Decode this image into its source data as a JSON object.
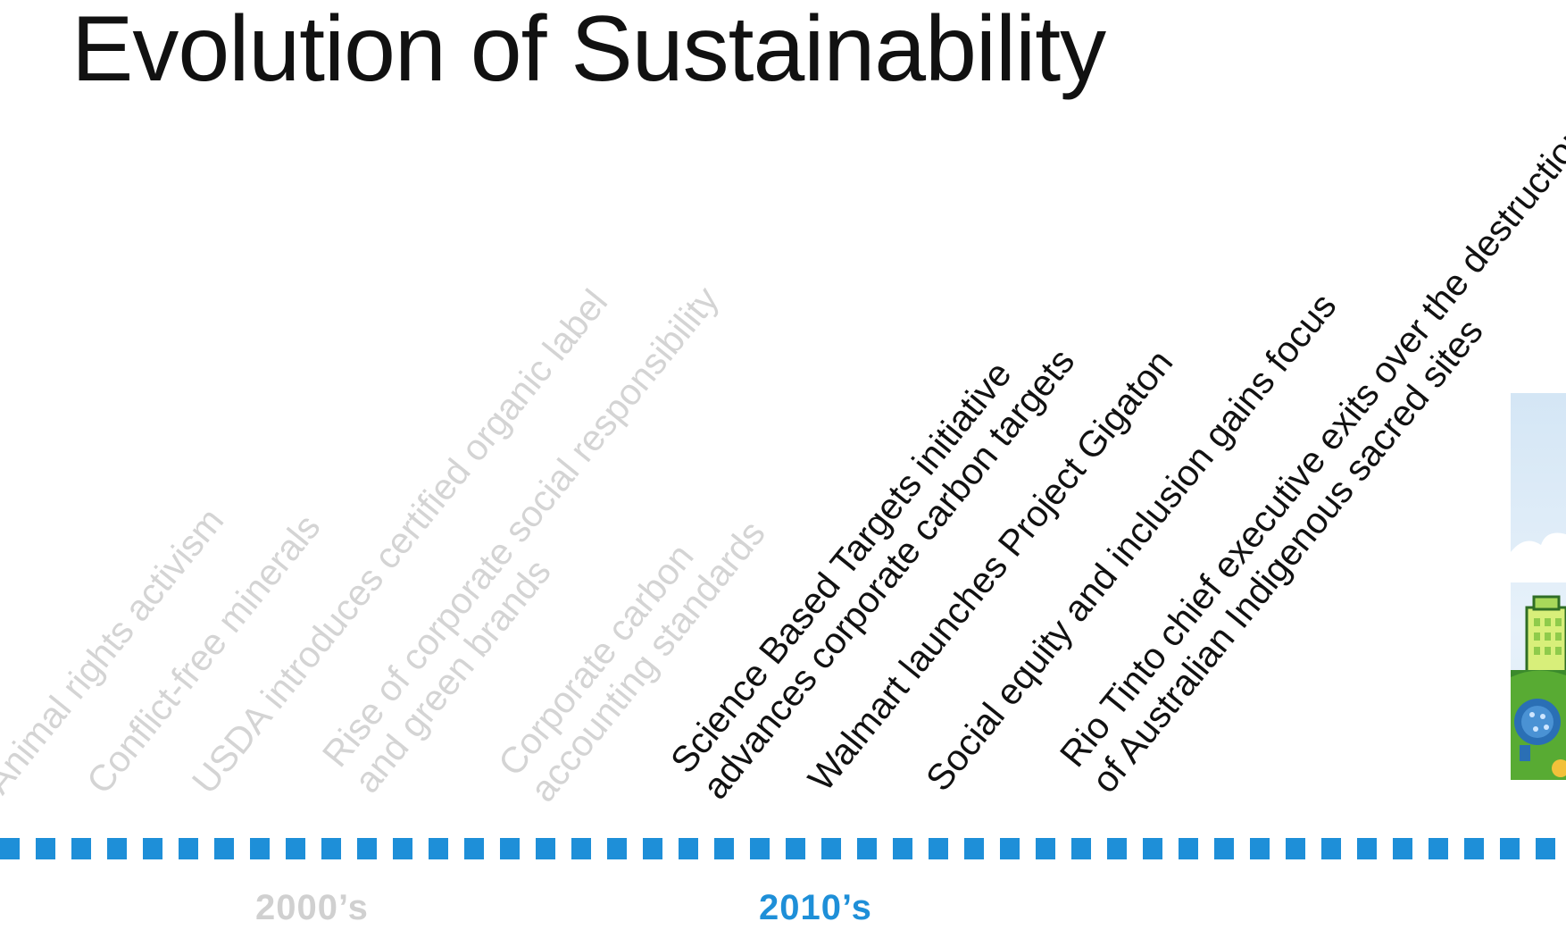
{
  "title": "Evolution of Sustainability",
  "colors": {
    "accent": "#1e8fd8",
    "past_text": "#d4d4d4",
    "current_text": "#111111"
  },
  "events_past": [
    {
      "lines": [
        "Animal rights activism"
      ]
    },
    {
      "lines": [
        "Conflict-free minerals"
      ]
    },
    {
      "lines": [
        "USDA introduces certified organic label"
      ]
    },
    {
      "lines": [
        "Rise of corporate social responsibility",
        "and green brands"
      ]
    },
    {
      "lines": [
        "Corporate carbon",
        "accounting standards"
      ]
    }
  ],
  "events_current": [
    {
      "lines": [
        "Science Based Targets initiative",
        "advances corporate carbon targets"
      ]
    },
    {
      "lines": [
        "Walmart launches Project Gigaton"
      ]
    },
    {
      "lines": [
        "Social equity and inclusion gains focus"
      ]
    },
    {
      "lines": [
        "Rio Tinto chief executive exits over the destruction",
        "of Australian Indigenous sacred sites"
      ]
    }
  ],
  "decades": [
    {
      "label": "2000’s"
    },
    {
      "label": "2010’s"
    }
  ],
  "illustration": {
    "name": "city-sustainability-illustration"
  }
}
